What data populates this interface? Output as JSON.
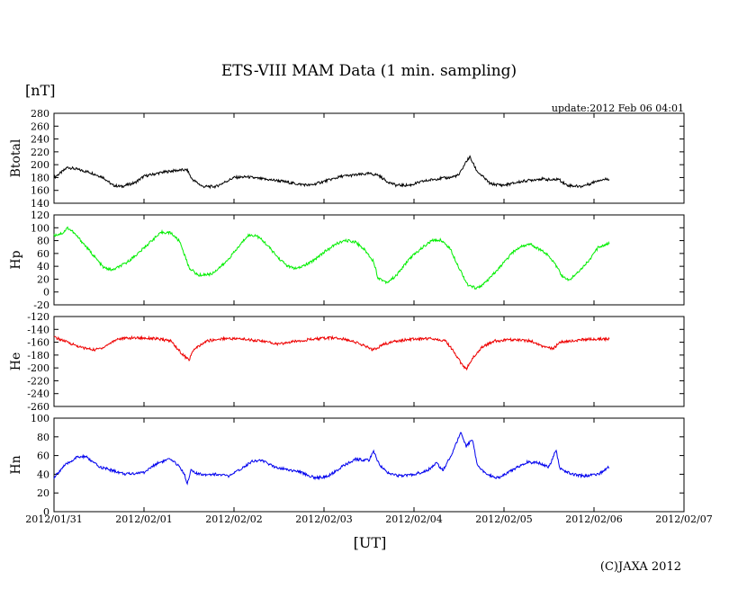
{
  "title": "ETS-VIII MAM Data (1 min. sampling)",
  "unit_label": "[nT]",
  "update_text": "update:2012 Feb 06 04:01",
  "xlabel": "[UT]",
  "copyright": "(C)JAXA 2012",
  "chart_data": {
    "type": "line",
    "x_ticks": [
      "2012/01/31",
      "2012/02/01",
      "2012/02/02",
      "2012/02/03",
      "2012/02/04",
      "2012/02/05",
      "2012/02/06",
      "2012/02/07"
    ],
    "x_range_days": [
      0,
      7
    ],
    "data_end_day": 6.17,
    "panels": [
      {
        "name": "Btotal",
        "color": "#000000",
        "ylim": [
          140,
          280
        ],
        "ystep": 20,
        "yticks": [
          "280",
          "260",
          "240",
          "220",
          "200",
          "180",
          "160",
          "140"
        ],
        "series": [
          [
            0,
            180
          ],
          [
            0.1,
            190
          ],
          [
            0.15,
            196
          ],
          [
            0.25,
            193
          ],
          [
            0.4,
            188
          ],
          [
            0.55,
            180
          ],
          [
            0.65,
            168
          ],
          [
            0.75,
            166
          ],
          [
            0.9,
            172
          ],
          [
            1.0,
            182
          ],
          [
            1.2,
            188
          ],
          [
            1.35,
            191
          ],
          [
            1.48,
            192
          ],
          [
            1.53,
            178
          ],
          [
            1.65,
            166
          ],
          [
            1.8,
            166
          ],
          [
            2.0,
            180
          ],
          [
            2.15,
            181
          ],
          [
            2.3,
            178
          ],
          [
            2.5,
            175
          ],
          [
            2.7,
            170
          ],
          [
            2.85,
            168
          ],
          [
            3.0,
            174
          ],
          [
            3.2,
            182
          ],
          [
            3.35,
            184
          ],
          [
            3.5,
            186
          ],
          [
            3.6,
            184
          ],
          [
            3.7,
            174
          ],
          [
            3.8,
            168
          ],
          [
            3.95,
            168
          ],
          [
            4.1,
            174
          ],
          [
            4.25,
            178
          ],
          [
            4.4,
            180
          ],
          [
            4.5,
            184
          ],
          [
            4.58,
            205
          ],
          [
            4.62,
            212
          ],
          [
            4.7,
            190
          ],
          [
            4.85,
            170
          ],
          [
            5.0,
            168
          ],
          [
            5.2,
            174
          ],
          [
            5.4,
            178
          ],
          [
            5.55,
            176
          ],
          [
            5.6,
            178
          ],
          [
            5.7,
            168
          ],
          [
            5.85,
            166
          ],
          [
            5.95,
            170
          ],
          [
            6.05,
            176
          ],
          [
            6.17,
            178
          ]
        ]
      },
      {
        "name": "Hp",
        "color": "#00ee00",
        "ylim": [
          -20,
          120
        ],
        "ystep": 20,
        "yticks": [
          "120",
          "100",
          "80",
          "60",
          "40",
          "20",
          "0",
          "-20"
        ],
        "series": [
          [
            0,
            88
          ],
          [
            0.1,
            92
          ],
          [
            0.15,
            100
          ],
          [
            0.2,
            95
          ],
          [
            0.3,
            80
          ],
          [
            0.45,
            55
          ],
          [
            0.55,
            38
          ],
          [
            0.65,
            34
          ],
          [
            0.8,
            45
          ],
          [
            0.95,
            62
          ],
          [
            1.1,
            82
          ],
          [
            1.2,
            93
          ],
          [
            1.3,
            92
          ],
          [
            1.4,
            78
          ],
          [
            1.5,
            38
          ],
          [
            1.6,
            26
          ],
          [
            1.75,
            28
          ],
          [
            1.9,
            45
          ],
          [
            2.05,
            70
          ],
          [
            2.15,
            88
          ],
          [
            2.25,
            88
          ],
          [
            2.35,
            76
          ],
          [
            2.5,
            52
          ],
          [
            2.6,
            40
          ],
          [
            2.7,
            36
          ],
          [
            2.85,
            46
          ],
          [
            3.0,
            62
          ],
          [
            3.15,
            76
          ],
          [
            3.25,
            80
          ],
          [
            3.35,
            78
          ],
          [
            3.45,
            66
          ],
          [
            3.55,
            48
          ],
          [
            3.6,
            22
          ],
          [
            3.7,
            15
          ],
          [
            3.8,
            25
          ],
          [
            3.95,
            52
          ],
          [
            4.1,
            70
          ],
          [
            4.2,
            80
          ],
          [
            4.3,
            81
          ],
          [
            4.4,
            68
          ],
          [
            4.5,
            38
          ],
          [
            4.6,
            10
          ],
          [
            4.7,
            6
          ],
          [
            4.8,
            15
          ],
          [
            4.95,
            38
          ],
          [
            5.1,
            62
          ],
          [
            5.2,
            72
          ],
          [
            5.3,
            74
          ],
          [
            5.45,
            62
          ],
          [
            5.55,
            48
          ],
          [
            5.65,
            24
          ],
          [
            5.72,
            18
          ],
          [
            5.8,
            28
          ],
          [
            5.95,
            50
          ],
          [
            6.05,
            70
          ],
          [
            6.17,
            76
          ]
        ]
      },
      {
        "name": "He",
        "color": "#ee0000",
        "ylim": [
          -260,
          -120
        ],
        "ystep": 20,
        "yticks": [
          "-120",
          "-140",
          "-160",
          "-180",
          "-200",
          "-220",
          "-240",
          "-260"
        ],
        "series": [
          [
            0,
            -152
          ],
          [
            0.15,
            -160
          ],
          [
            0.3,
            -168
          ],
          [
            0.45,
            -172
          ],
          [
            0.55,
            -168
          ],
          [
            0.7,
            -155
          ],
          [
            0.9,
            -153
          ],
          [
            1.1,
            -154
          ],
          [
            1.3,
            -158
          ],
          [
            1.42,
            -178
          ],
          [
            1.5,
            -188
          ],
          [
            1.55,
            -172
          ],
          [
            1.7,
            -158
          ],
          [
            1.9,
            -154
          ],
          [
            2.1,
            -155
          ],
          [
            2.3,
            -158
          ],
          [
            2.5,
            -163
          ],
          [
            2.7,
            -158
          ],
          [
            2.9,
            -155
          ],
          [
            3.1,
            -153
          ],
          [
            3.3,
            -157
          ],
          [
            3.45,
            -166
          ],
          [
            3.55,
            -172
          ],
          [
            3.65,
            -164
          ],
          [
            3.8,
            -158
          ],
          [
            4.0,
            -155
          ],
          [
            4.2,
            -154
          ],
          [
            4.35,
            -158
          ],
          [
            4.45,
            -176
          ],
          [
            4.52,
            -192
          ],
          [
            4.58,
            -202
          ],
          [
            4.65,
            -185
          ],
          [
            4.75,
            -168
          ],
          [
            4.9,
            -158
          ],
          [
            5.1,
            -156
          ],
          [
            5.3,
            -158
          ],
          [
            5.45,
            -168
          ],
          [
            5.55,
            -170
          ],
          [
            5.62,
            -160
          ],
          [
            5.75,
            -158
          ],
          [
            5.95,
            -155
          ],
          [
            6.17,
            -155
          ]
        ]
      },
      {
        "name": "Hn",
        "color": "#0000ee",
        "ylim": [
          0,
          100
        ],
        "ystep": 20,
        "yticks": [
          "100",
          "80",
          "60",
          "40",
          "20",
          "0"
        ],
        "series": [
          [
            0,
            36
          ],
          [
            0.1,
            48
          ],
          [
            0.25,
            58
          ],
          [
            0.35,
            59
          ],
          [
            0.5,
            48
          ],
          [
            0.65,
            44
          ],
          [
            0.8,
            40
          ],
          [
            1.0,
            42
          ],
          [
            1.15,
            52
          ],
          [
            1.28,
            56
          ],
          [
            1.38,
            50
          ],
          [
            1.45,
            40
          ],
          [
            1.48,
            30
          ],
          [
            1.52,
            44
          ],
          [
            1.6,
            40
          ],
          [
            1.8,
            40
          ],
          [
            1.95,
            38
          ],
          [
            2.05,
            44
          ],
          [
            2.2,
            54
          ],
          [
            2.3,
            55
          ],
          [
            2.45,
            48
          ],
          [
            2.6,
            45
          ],
          [
            2.75,
            42
          ],
          [
            2.9,
            36
          ],
          [
            3.05,
            38
          ],
          [
            3.2,
            48
          ],
          [
            3.35,
            56
          ],
          [
            3.5,
            55
          ],
          [
            3.55,
            64
          ],
          [
            3.62,
            50
          ],
          [
            3.7,
            42
          ],
          [
            3.85,
            38
          ],
          [
            4.0,
            40
          ],
          [
            4.15,
            44
          ],
          [
            4.25,
            52
          ],
          [
            4.32,
            44
          ],
          [
            4.4,
            58
          ],
          [
            4.48,
            75
          ],
          [
            4.52,
            85
          ],
          [
            4.58,
            70
          ],
          [
            4.65,
            78
          ],
          [
            4.7,
            50
          ],
          [
            4.8,
            40
          ],
          [
            4.95,
            36
          ],
          [
            5.1,
            45
          ],
          [
            5.25,
            53
          ],
          [
            5.4,
            52
          ],
          [
            5.5,
            48
          ],
          [
            5.58,
            66
          ],
          [
            5.62,
            46
          ],
          [
            5.75,
            40
          ],
          [
            5.9,
            38
          ],
          [
            6.05,
            40
          ],
          [
            6.17,
            48
          ]
        ]
      }
    ]
  }
}
